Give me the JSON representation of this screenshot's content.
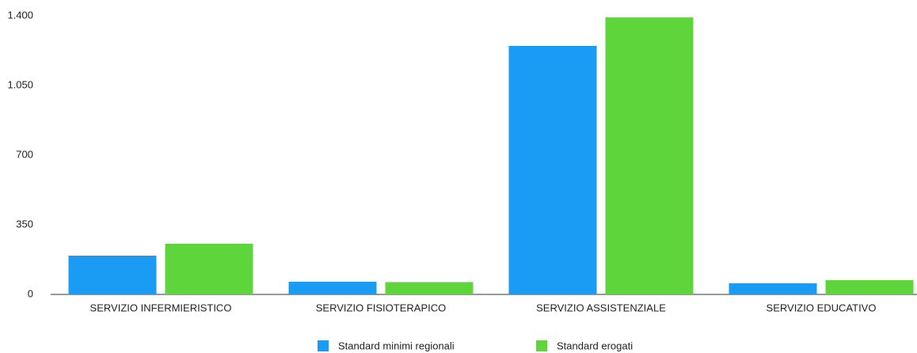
{
  "chart_data": {
    "type": "bar",
    "categories": [
      "SERVIZIO INFERMIERISTICO",
      "SERVIZIO FISIOTERAPICO",
      "SERVIZIO ASSISTENZIALE",
      "SERVIZIO EDUCATIVO"
    ],
    "series": [
      {
        "name": "Standard minimi regionali",
        "color": "#1a9cf5",
        "values": [
          195,
          64,
          1249,
          56
        ]
      },
      {
        "name": "Standard erogati",
        "color": "#5fd53c",
        "values": [
          255,
          62,
          1392,
          72
        ]
      }
    ],
    "ylim": [
      0,
      1400
    ],
    "yticks": [
      0,
      350,
      700,
      {
        "value": 1050,
        "label": "1.050"
      },
      {
        "value": 1400,
        "label": "1.400"
      }
    ],
    "grid": false
  }
}
